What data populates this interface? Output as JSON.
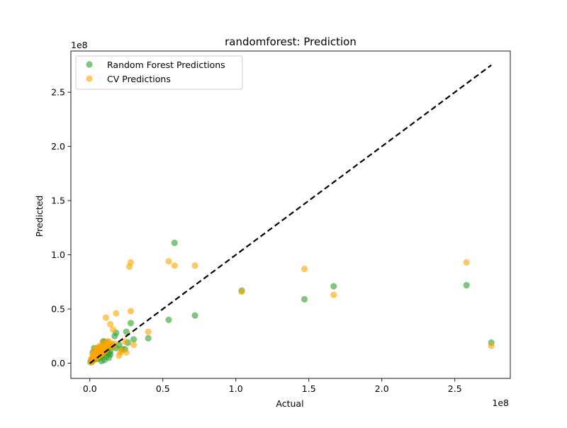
{
  "chart_data": {
    "type": "scatter",
    "title": "randomforest: Prediction",
    "xlabel": "Actual",
    "ylabel": "Predicted",
    "x_offset_label": "1e8",
    "y_offset_label": "1e8",
    "xlim": [
      -0.13,
      2.88
    ],
    "ylim": [
      -0.14,
      2.88
    ],
    "x_ticks": [
      0.0,
      0.5,
      1.0,
      1.5,
      2.0,
      2.5
    ],
    "x_tick_labels": [
      "0.0",
      "0.5",
      "1.0",
      "1.5",
      "2.0",
      "2.5"
    ],
    "y_ticks": [
      0.0,
      0.5,
      1.0,
      1.5,
      2.0,
      2.5
    ],
    "y_tick_labels": [
      "0.0",
      "0.5",
      "1.0",
      "1.5",
      "2.0",
      "2.5"
    ],
    "grid": false,
    "legend_position": "top-left",
    "reference_line": {
      "x": [
        0,
        2.75
      ],
      "y": [
        0,
        2.75
      ],
      "style": "dashed",
      "color": "#000000"
    },
    "series": [
      {
        "name": "Random Forest Predictions",
        "color": "#2ca02c",
        "x": [
          0.005,
          0.01,
          0.015,
          0.02,
          0.025,
          0.03,
          0.035,
          0.04,
          0.045,
          0.05,
          0.055,
          0.06,
          0.065,
          0.07,
          0.075,
          0.08,
          0.085,
          0.09,
          0.095,
          0.1,
          0.11,
          0.12,
          0.13,
          0.14,
          0.15,
          0.16,
          0.18,
          0.2,
          0.22,
          0.25,
          0.28,
          0.3,
          0.02,
          0.04,
          0.06,
          0.08,
          0.1,
          0.12,
          0.13,
          0.17,
          0.24,
          0.26,
          0.1,
          0.13,
          0.15,
          0.18,
          0.08,
          0.05,
          0.11,
          0.14,
          0.03,
          0.06,
          0.09,
          0.4,
          0.54,
          0.58,
          0.72,
          1.04,
          1.47,
          1.67,
          2.58,
          2.75
        ],
        "y": [
          0.01,
          0.03,
          0.02,
          0.05,
          0.03,
          0.04,
          0.06,
          0.05,
          0.08,
          0.04,
          0.07,
          0.06,
          0.09,
          0.05,
          0.08,
          0.1,
          0.07,
          0.11,
          0.09,
          0.12,
          0.1,
          0.13,
          0.14,
          0.11,
          0.16,
          0.15,
          0.14,
          0.17,
          0.13,
          0.29,
          0.37,
          0.22,
          0.1,
          0.12,
          0.14,
          0.15,
          0.2,
          0.18,
          0.09,
          0.25,
          0.13,
          0.19,
          0.03,
          0.05,
          0.16,
          0.28,
          0.02,
          0.1,
          0.06,
          0.08,
          0.14,
          0.12,
          0.2,
          0.23,
          0.4,
          1.11,
          0.44,
          0.67,
          0.59,
          0.71,
          0.72,
          0.19
        ]
      },
      {
        "name": "CV Predictions",
        "color": "#ffa500",
        "x": [
          0.005,
          0.01,
          0.015,
          0.02,
          0.025,
          0.03,
          0.035,
          0.04,
          0.045,
          0.05,
          0.055,
          0.06,
          0.065,
          0.07,
          0.075,
          0.08,
          0.085,
          0.09,
          0.095,
          0.1,
          0.11,
          0.12,
          0.13,
          0.14,
          0.15,
          0.16,
          0.18,
          0.2,
          0.22,
          0.25,
          0.28,
          0.3,
          0.02,
          0.04,
          0.06,
          0.08,
          0.1,
          0.12,
          0.16,
          0.17,
          0.21,
          0.11,
          0.14,
          0.05,
          0.07,
          0.09,
          0.13,
          0.24,
          0.27,
          0.28,
          0.4,
          0.54,
          0.58,
          0.72,
          1.04,
          1.47,
          1.67,
          2.58,
          2.75,
          0.03,
          0.08
        ],
        "y": [
          0.02,
          0.04,
          0.01,
          0.06,
          0.05,
          0.03,
          0.08,
          0.07,
          0.05,
          0.1,
          0.06,
          0.09,
          0.07,
          0.11,
          0.08,
          0.12,
          0.09,
          0.13,
          0.1,
          0.14,
          0.12,
          0.16,
          0.17,
          0.15,
          0.18,
          0.31,
          0.46,
          0.07,
          0.12,
          0.1,
          0.48,
          0.17,
          0.08,
          0.13,
          0.15,
          0.11,
          0.17,
          0.2,
          0.15,
          0.18,
          0.1,
          0.42,
          0.36,
          0.14,
          0.16,
          0.19,
          0.2,
          0.2,
          0.89,
          0.93,
          0.29,
          0.94,
          0.9,
          0.9,
          0.66,
          0.87,
          0.63,
          0.93,
          0.16,
          0.12,
          0.1
        ]
      }
    ]
  }
}
